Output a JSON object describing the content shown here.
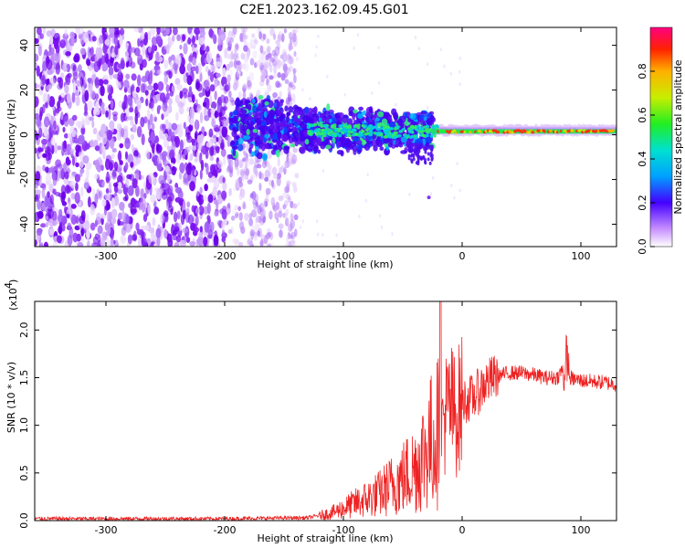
{
  "title": "C2E1.2023.162.09.45.G01",
  "colors": {
    "snr_line": "#ee2222",
    "axis": "#000000"
  },
  "chart_data": [
    {
      "type": "heatmap",
      "xlabel": "Height of straight line (km)",
      "ylabel": "Frequency (Hz)",
      "xlim": [
        -360,
        130
      ],
      "ylim": [
        -50,
        48
      ],
      "xticks": [
        -300,
        -200,
        -100,
        0,
        100
      ],
      "yticks": [
        -40,
        -20,
        0,
        20,
        40
      ],
      "colorbar": {
        "label": "Normalized spectral amplitude",
        "range": [
          0.0,
          1.0
        ],
        "ticks": [
          0.0,
          0.2,
          0.4,
          0.6,
          0.8
        ]
      },
      "signal_track": [
        {
          "x": -190,
          "f": 5
        },
        {
          "x": -160,
          "f": 3
        },
        {
          "x": -120,
          "f": 2
        },
        {
          "x": -80,
          "f": 2
        },
        {
          "x": -50,
          "f": 1
        },
        {
          "x": -20,
          "f": 2
        },
        {
          "x": 0,
          "f": 1
        },
        {
          "x": 50,
          "f": 1
        },
        {
          "x": 100,
          "f": 1
        },
        {
          "x": 130,
          "f": 1
        }
      ]
    },
    {
      "type": "line",
      "xlabel": "Height of straight line (km)",
      "ylabel": "SNR (10 * v/v)",
      "yscale_label": "(x10",
      "yscale_exp": "4",
      "yscale_close": ")",
      "xlim": [
        -360,
        130
      ],
      "ylim": [
        0,
        2.3
      ],
      "xticks": [
        -300,
        -200,
        -100,
        0,
        100
      ],
      "yticks": [
        "0.0",
        "0.5",
        "1.0",
        "1.5",
        "2.0"
      ],
      "series": [
        {
          "x": [
            -360,
            -300,
            -200,
            -130,
            -110,
            -90,
            -70,
            -50,
            -40,
            -30,
            -20,
            -15,
            -10,
            -5,
            0,
            10,
            20,
            30,
            40,
            50,
            60,
            70,
            80,
            85,
            88,
            90,
            95,
            100,
            110,
            120,
            130
          ],
          "y": [
            0.02,
            0.02,
            0.02,
            0.03,
            0.08,
            0.18,
            0.28,
            0.45,
            0.55,
            0.75,
            0.95,
            1.1,
            1.2,
            1.1,
            1.25,
            1.3,
            1.45,
            1.52,
            1.55,
            1.55,
            1.53,
            1.5,
            1.5,
            1.6,
            1.8,
            1.5,
            1.48,
            1.47,
            1.46,
            1.45,
            1.43
          ]
        }
      ]
    }
  ]
}
